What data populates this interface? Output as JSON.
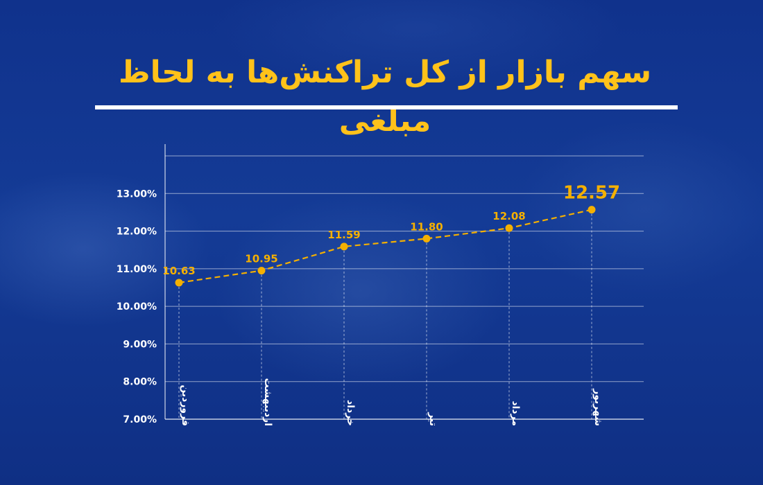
{
  "title": "سهم بازار از کل تراکنش‌ها به لحاظ مبلغی",
  "colors": {
    "title": "#ffc21a",
    "series": "#f5b000",
    "grid": "#ffffff",
    "axis_text": "#ffffff",
    "background": "#0f2f86"
  },
  "chart_data": {
    "type": "line",
    "title": "سهم بازار از کل تراکنش‌ها به لحاظ مبلغی",
    "xlabel": "",
    "ylabel": "",
    "categories": [
      "فروردین",
      "اردیبهشت",
      "خرداد",
      "تیر",
      "مرداد",
      "شهریور"
    ],
    "values": [
      10.63,
      10.95,
      11.59,
      11.8,
      12.08,
      12.57
    ],
    "data_labels": [
      "10.63",
      "10.95",
      "11.59",
      "11.80",
      "12.08",
      "12.57"
    ],
    "y_ticks": [
      7,
      8,
      9,
      10,
      11,
      12,
      13
    ],
    "y_tick_labels": [
      "7.00%",
      "8.00%",
      "9.00%",
      "10.00%",
      "11.00%",
      "12.00%",
      "13.00%"
    ],
    "ylim": [
      7,
      14
    ],
    "grid": true,
    "line_style": "dashed",
    "legend": "none"
  }
}
